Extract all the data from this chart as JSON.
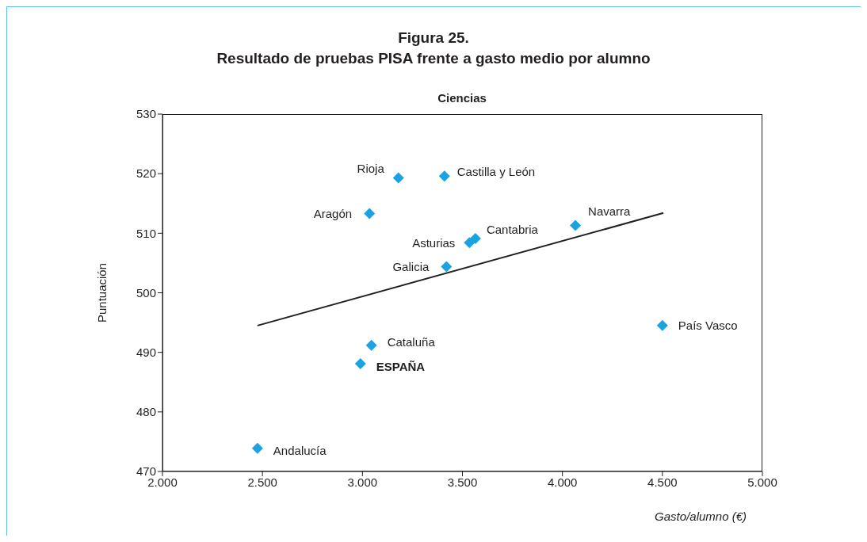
{
  "chart_data": {
    "type": "scatter",
    "title": "Figura 25.\nResultado de pruebas PISA frente a gasto medio por alumno",
    "subtitle": "Ciencias",
    "xlabel": "Gasto/alumno (€)",
    "ylabel": "Puntuación",
    "xlim": [
      2000,
      5000
    ],
    "xticks": [
      {
        "value": 2000,
        "label": "2.000"
      },
      {
        "value": 2500,
        "label": "2.500"
      },
      {
        "value": 3000,
        "label": "3.000"
      },
      {
        "value": 3500,
        "label": "3.500"
      },
      {
        "value": 4000,
        "label": "4.000"
      },
      {
        "value": 4500,
        "label": "4.500"
      },
      {
        "value": 5000,
        "label": "5.000"
      }
    ],
    "ylim": [
      470,
      530
    ],
    "yticks": [
      470,
      480,
      490,
      500,
      510,
      520,
      530
    ],
    "grid": false,
    "legend": false,
    "series": [
      {
        "color": "#1aa3e0",
        "marker": "diamond",
        "x": [
          3180,
          3410,
          3035,
          4065,
          3565,
          3535,
          3420,
          4500,
          3045,
          2990,
          2475
        ],
        "values": [
          519.3,
          519.6,
          513.3,
          511.3,
          509.1,
          508.4,
          504.4,
          494.5,
          491.2,
          488.1,
          473.9
        ]
      },
      {
        "type": "line",
        "color": "#231f20",
        "x": [
          2475,
          4505
        ],
        "values": [
          494.5,
          513.4
        ]
      }
    ],
    "annotations": [
      {
        "text": "Rioja",
        "x": 3180,
        "y": 519.3
      },
      {
        "text": "Castilla y León",
        "x": 3410,
        "y": 519.6
      },
      {
        "text": "Aragón",
        "x": 3035,
        "y": 513.3
      },
      {
        "text": "Navarra",
        "x": 4065,
        "y": 511.3
      },
      {
        "text": "Cantabria",
        "x": 3565,
        "y": 509.1
      },
      {
        "text": "Asturias",
        "x": 3535,
        "y": 508.4
      },
      {
        "text": "Galicia",
        "x": 3420,
        "y": 504.4
      },
      {
        "text": "País Vasco",
        "x": 4500,
        "y": 494.5
      },
      {
        "text": "Cataluña",
        "x": 3045,
        "y": 491.2
      },
      {
        "text": "ESPAÑA",
        "x": 2990,
        "y": 488.1
      },
      {
        "text": "Andalucía",
        "x": 2475,
        "y": 473.9
      }
    ]
  }
}
